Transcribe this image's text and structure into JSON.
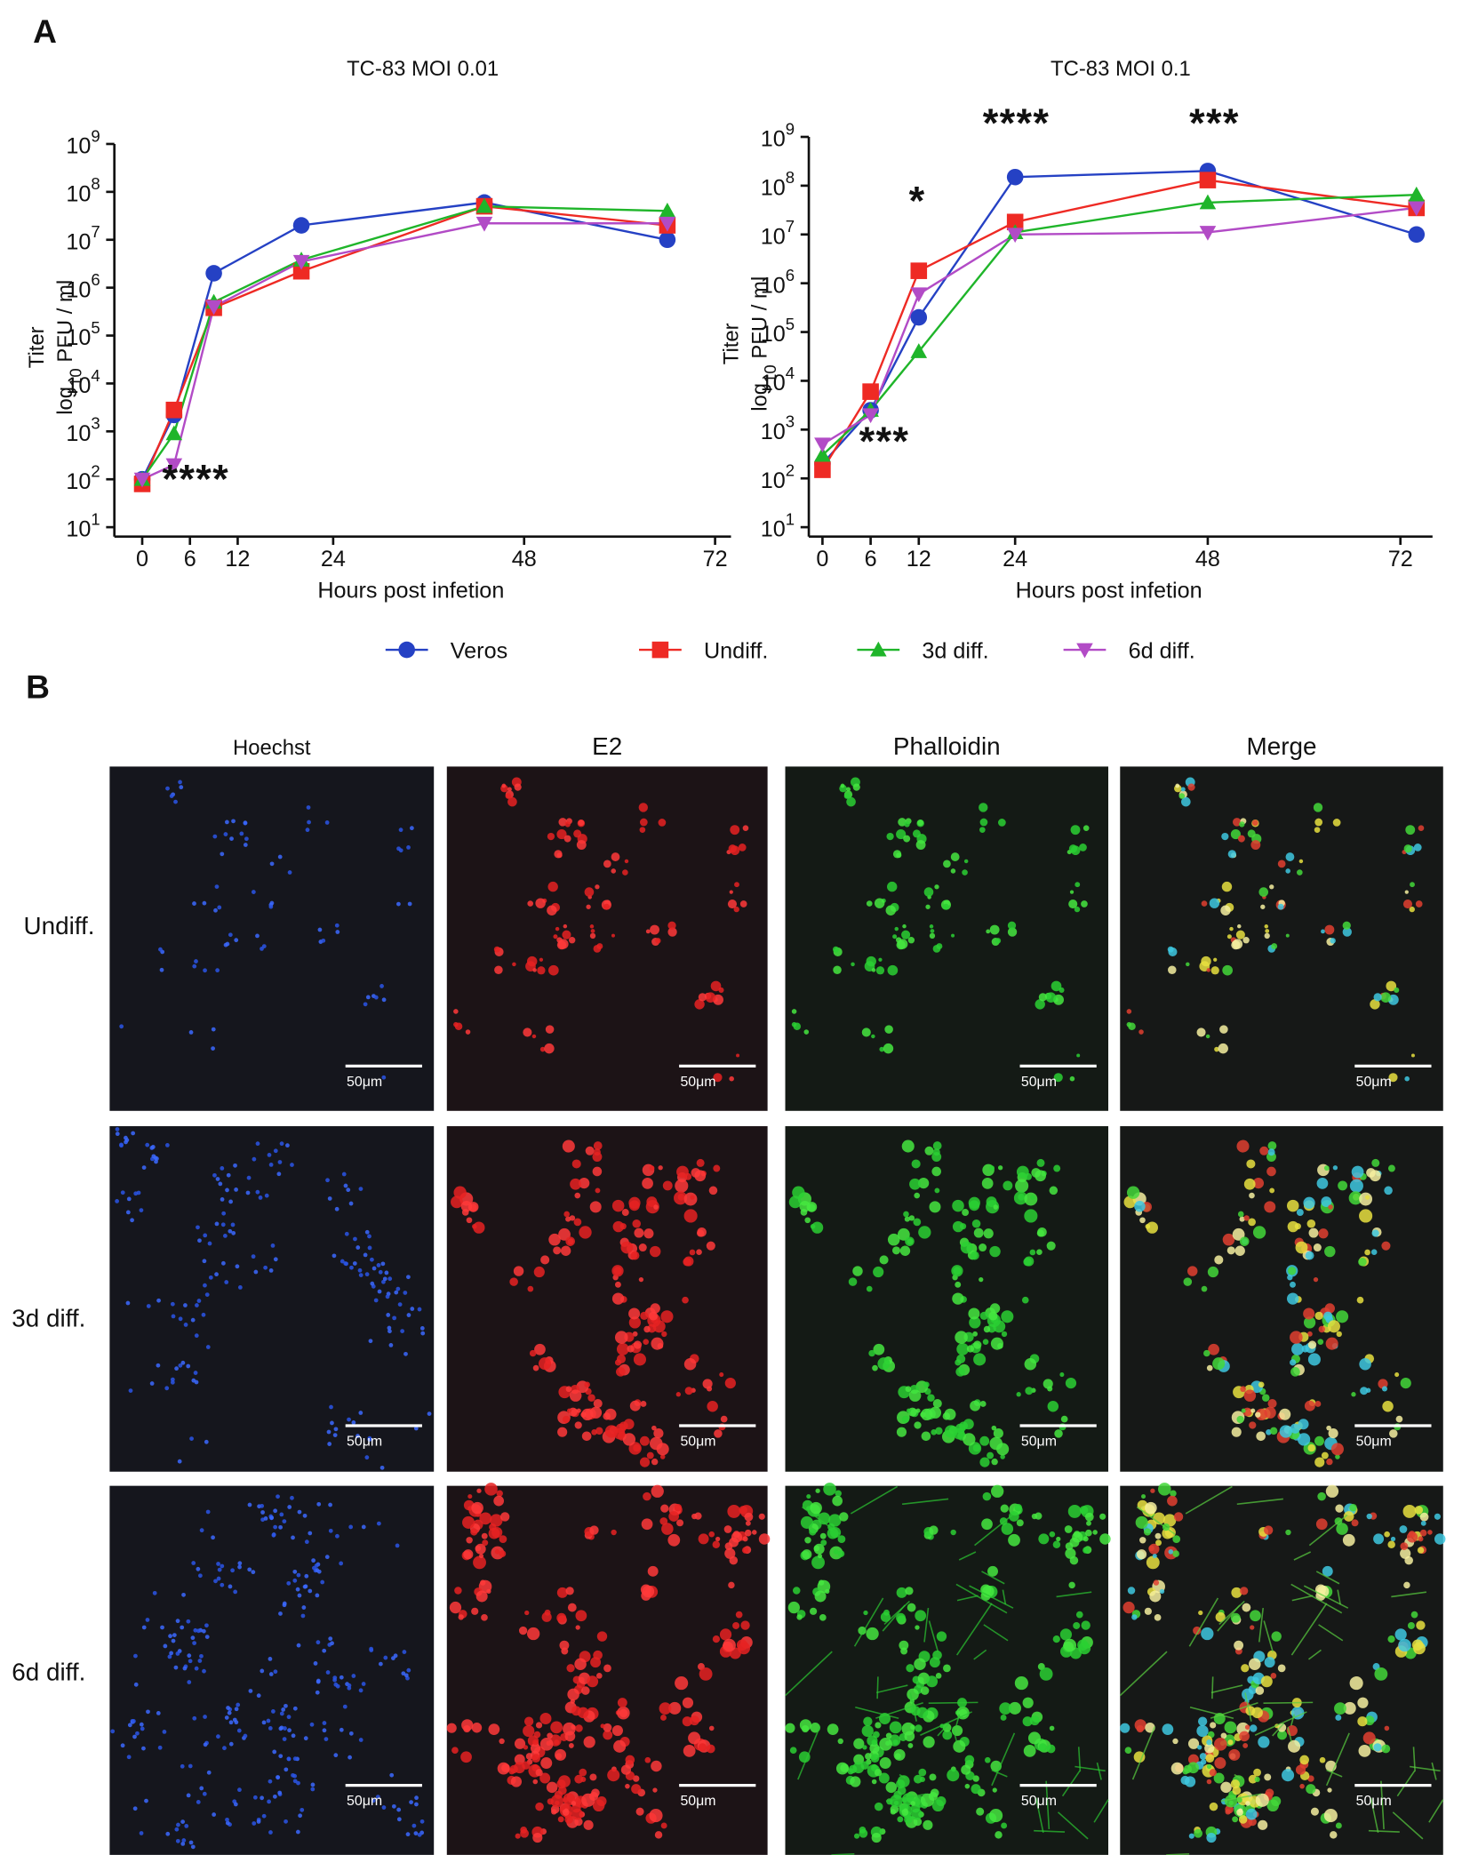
{
  "figure": {
    "panel_a": "A",
    "panel_b": "B"
  },
  "chart_data": [
    {
      "type": "line",
      "title": "TC-83 MOI 0.01",
      "xlabel": "Hours post infetion",
      "ylabel": "Titer",
      "ylabel_unit": {
        "pre": "log",
        "sub": "10",
        "post": " PFU / ml"
      },
      "log_y": true,
      "ylim": [
        10,
        1000000000
      ],
      "yticks": [
        {
          "value": 10,
          "label": "10",
          "sup": "1"
        },
        {
          "value": 100,
          "label": "10",
          "sup": "2"
        },
        {
          "value": 1000,
          "label": "10",
          "sup": "3"
        },
        {
          "value": 10000,
          "label": "10",
          "sup": "4"
        },
        {
          "value": 100000,
          "label": "10",
          "sup": "5"
        },
        {
          "value": 1000000,
          "label": "10",
          "sup": "6"
        },
        {
          "value": 10000000,
          "label": "10",
          "sup": "7"
        },
        {
          "value": 100000000,
          "label": "10",
          "sup": "8"
        },
        {
          "value": 1000000000,
          "label": "10",
          "sup": "9"
        }
      ],
      "xlim": [
        -3.5,
        74
      ],
      "xticks": [
        0,
        6,
        12,
        24,
        48,
        72
      ],
      "x": [
        0,
        4,
        9,
        20,
        43,
        66
      ],
      "series": [
        {
          "name": "Veros",
          "color": "#2541c4",
          "marker": "circle",
          "values": [
            100,
            2200,
            2000000,
            20000000,
            60000000,
            10000000
          ]
        },
        {
          "name": "Undiff.",
          "color": "#ee2a24",
          "marker": "square",
          "values": [
            80,
            2800,
            380000,
            2200000,
            50000000,
            20000000
          ]
        },
        {
          "name": "3d diff.",
          "color": "#1fb52a",
          "marker": "triangle",
          "values": [
            100,
            900,
            500000,
            3800000,
            50000000,
            40000000
          ]
        },
        {
          "name": "6d diff.",
          "color": "#b24bc6",
          "marker": "triangle-down",
          "values": [
            100,
            200,
            400000,
            3500000,
            22000000,
            22000000
          ]
        }
      ],
      "annotations": [
        "****"
      ]
    },
    {
      "type": "line",
      "title": "TC-83 MOI 0.1",
      "xlabel": "Hours post infetion",
      "ylabel": "Titer",
      "ylabel_unit": {
        "pre": "log",
        "sub": "10",
        "post": " PFU / ml"
      },
      "log_y": true,
      "ylim": [
        10,
        1000000000
      ],
      "yticks": [
        {
          "value": 10,
          "label": "10",
          "sup": "1"
        },
        {
          "value": 100,
          "label": "10",
          "sup": "2"
        },
        {
          "value": 1000,
          "label": "10",
          "sup": "3"
        },
        {
          "value": 10000,
          "label": "10",
          "sup": "4"
        },
        {
          "value": 100000,
          "label": "10",
          "sup": "5"
        },
        {
          "value": 1000000,
          "label": "10",
          "sup": "6"
        },
        {
          "value": 10000000,
          "label": "10",
          "sup": "7"
        },
        {
          "value": 100000000,
          "label": "10",
          "sup": "8"
        },
        {
          "value": 1000000000,
          "label": "10",
          "sup": "9"
        }
      ],
      "xlim": [
        -1.7,
        76
      ],
      "xticks": [
        0,
        6,
        12,
        24,
        48,
        72
      ],
      "x": [
        0,
        6,
        12,
        24,
        48,
        74
      ],
      "series": [
        {
          "name": "Veros",
          "color": "#2541c4",
          "marker": "circle",
          "values": [
            200,
            2500,
            200000,
            150000000,
            200000000,
            10000000
          ]
        },
        {
          "name": "Undiff.",
          "color": "#ee2a24",
          "marker": "square",
          "values": [
            150,
            6000,
            1800000,
            18000000,
            130000000,
            35000000
          ]
        },
        {
          "name": "3d diff.",
          "color": "#1fb52a",
          "marker": "triangle",
          "values": [
            300,
            2500,
            40000,
            11000000,
            45000000,
            65000000
          ]
        },
        {
          "name": "6d diff.",
          "color": "#b24bc6",
          "marker": "triangle-down",
          "values": [
            500,
            2000,
            600000,
            10000000,
            11000000,
            35000000
          ]
        }
      ],
      "annotations": [
        "*",
        "****",
        "***",
        "***"
      ]
    }
  ],
  "microscopy": {
    "columns": [
      "Hoechst",
      "E2",
      "Phalloidin",
      "Merge"
    ],
    "rows": [
      "Undiff.",
      "3d diff.",
      "6d diff."
    ],
    "scale_bar": "50μm"
  }
}
